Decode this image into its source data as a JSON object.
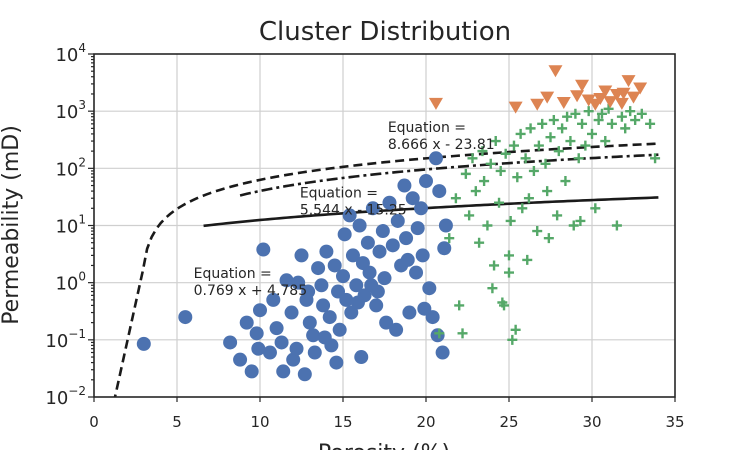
{
  "chart_data": {
    "type": "scatter",
    "title": "Cluster Distribution",
    "xlabel": "Porosity (%)",
    "ylabel": "Permeability (mD)",
    "xlim": [
      0,
      35
    ],
    "ylim_log10": [
      -2,
      4
    ],
    "yscale": "log",
    "grid": true,
    "x_ticks": [
      0,
      5,
      10,
      15,
      20,
      25,
      30,
      35
    ],
    "y_ticks": [
      {
        "base": "10",
        "exp": "−2"
      },
      {
        "base": "10",
        "exp": "−1"
      },
      {
        "base": "10",
        "exp": "0"
      },
      {
        "base": "10",
        "exp": "1"
      },
      {
        "base": "10",
        "exp": "2"
      },
      {
        "base": "10",
        "exp": "3"
      },
      {
        "base": "10",
        "exp": "4"
      }
    ],
    "colors": {
      "cluster_blue": "#4c72b0",
      "cluster_green": "#55a868",
      "cluster_orange": "#dd8452",
      "fit_line": "#1a1a1a"
    },
    "series": [
      {
        "marker": "circle",
        "color": "#4c72b0",
        "points": [
          [
            3.0,
            0.085
          ],
          [
            5.5,
            0.25
          ],
          [
            8.2,
            0.09
          ],
          [
            8.8,
            0.045
          ],
          [
            9.2,
            0.2
          ],
          [
            9.5,
            0.028
          ],
          [
            9.8,
            0.13
          ],
          [
            10.0,
            0.33
          ],
          [
            10.2,
            3.8
          ],
          [
            10.6,
            0.06
          ],
          [
            10.8,
            0.5
          ],
          [
            11.0,
            0.16
          ],
          [
            11.3,
            0.09
          ],
          [
            11.6,
            1.1
          ],
          [
            11.9,
            0.3
          ],
          [
            12.0,
            0.045
          ],
          [
            12.2,
            0.07
          ],
          [
            12.3,
            1.0
          ],
          [
            12.5,
            3.0
          ],
          [
            12.8,
            0.5
          ],
          [
            13.0,
            0.2
          ],
          [
            13.2,
            0.12
          ],
          [
            13.3,
            0.06
          ],
          [
            13.5,
            1.8
          ],
          [
            13.7,
            0.9
          ],
          [
            13.8,
            0.4
          ],
          [
            14.0,
            3.5
          ],
          [
            14.2,
            0.25
          ],
          [
            14.3,
            0.08
          ],
          [
            14.5,
            2.0
          ],
          [
            14.7,
            0.7
          ],
          [
            14.8,
            0.15
          ],
          [
            15.0,
            1.3
          ],
          [
            15.1,
            7.0
          ],
          [
            15.2,
            0.5
          ],
          [
            15.4,
            15.0
          ],
          [
            15.5,
            0.3
          ],
          [
            15.6,
            3.0
          ],
          [
            15.8,
            0.9
          ],
          [
            16.0,
            10.0
          ],
          [
            16.2,
            2.2
          ],
          [
            16.3,
            0.6
          ],
          [
            16.5,
            5.0
          ],
          [
            16.6,
            1.5
          ],
          [
            16.8,
            20.0
          ],
          [
            17.0,
            0.4
          ],
          [
            17.2,
            3.5
          ],
          [
            17.4,
            8.0
          ],
          [
            17.5,
            1.2
          ],
          [
            17.6,
            0.2
          ],
          [
            17.8,
            25.0
          ],
          [
            18.0,
            4.5
          ],
          [
            18.2,
            0.15
          ],
          [
            18.3,
            12.0
          ],
          [
            18.5,
            2.0
          ],
          [
            18.7,
            50.0
          ],
          [
            18.8,
            6.0
          ],
          [
            19.0,
            0.3
          ],
          [
            19.2,
            30.0
          ],
          [
            19.4,
            1.5
          ],
          [
            19.5,
            9.0
          ],
          [
            19.7,
            20.0
          ],
          [
            19.8,
            3.0
          ],
          [
            20.0,
            60.0
          ],
          [
            20.2,
            0.8
          ],
          [
            20.4,
            0.25
          ],
          [
            20.6,
            150.0
          ],
          [
            20.7,
            0.12
          ],
          [
            20.8,
            40.0
          ],
          [
            21.0,
            0.06
          ],
          [
            21.1,
            4.0
          ],
          [
            21.2,
            10.0
          ],
          [
            12.7,
            0.025
          ],
          [
            14.6,
            0.04
          ],
          [
            16.1,
            0.05
          ],
          [
            11.4,
            0.028
          ],
          [
            9.9,
            0.07
          ],
          [
            13.9,
            0.11
          ],
          [
            17.1,
            0.7
          ],
          [
            18.9,
            2.5
          ],
          [
            19.9,
            0.35
          ],
          [
            16.7,
            0.9
          ],
          [
            15.9,
            0.45
          ],
          [
            12.9,
            0.7
          ]
        ]
      },
      {
        "marker": "plus",
        "color": "#55a868",
        "points": [
          [
            20.8,
            0.13
          ],
          [
            21.4,
            6.0
          ],
          [
            21.8,
            30.0
          ],
          [
            22.0,
            0.4
          ],
          [
            22.2,
            0.13
          ],
          [
            22.4,
            80.0
          ],
          [
            22.6,
            15.0
          ],
          [
            22.8,
            150.0
          ],
          [
            23.0,
            40.0
          ],
          [
            23.2,
            5.0
          ],
          [
            23.4,
            200.0
          ],
          [
            23.5,
            60.0
          ],
          [
            23.7,
            10.0
          ],
          [
            23.9,
            120.0
          ],
          [
            24.0,
            0.8
          ],
          [
            24.1,
            2.0
          ],
          [
            24.2,
            300.0
          ],
          [
            24.4,
            25.0
          ],
          [
            24.5,
            90.0
          ],
          [
            24.7,
            0.4
          ],
          [
            24.8,
            180.0
          ],
          [
            25.0,
            3.0
          ],
          [
            25.1,
            12.0
          ],
          [
            25.2,
            0.1
          ],
          [
            25.3,
            250.0
          ],
          [
            25.5,
            70.0
          ],
          [
            25.7,
            400.0
          ],
          [
            25.8,
            20.0
          ],
          [
            26.0,
            150.0
          ],
          [
            26.2,
            30.0
          ],
          [
            26.3,
            500.0
          ],
          [
            26.5,
            90.0
          ],
          [
            26.7,
            8.0
          ],
          [
            26.8,
            250.0
          ],
          [
            27.0,
            600.0
          ],
          [
            27.2,
            120.0
          ],
          [
            27.3,
            40.0
          ],
          [
            27.5,
            350.0
          ],
          [
            27.7,
            700.0
          ],
          [
            27.9,
            15.0
          ],
          [
            28.0,
            200.0
          ],
          [
            28.2,
            500.0
          ],
          [
            28.4,
            60.0
          ],
          [
            28.5,
            800.0
          ],
          [
            28.7,
            300.0
          ],
          [
            28.9,
            10.0
          ],
          [
            29.0,
            900.0
          ],
          [
            29.2,
            150.0
          ],
          [
            29.4,
            600.0
          ],
          [
            29.6,
            250.0
          ],
          [
            29.8,
            1000.0
          ],
          [
            30.0,
            400.0
          ],
          [
            30.2,
            20.0
          ],
          [
            30.4,
            700.0
          ],
          [
            30.6,
            900.0
          ],
          [
            30.8,
            300.0
          ],
          [
            31.0,
            1100.0
          ],
          [
            31.2,
            600.0
          ],
          [
            31.5,
            10.0
          ],
          [
            31.8,
            800.0
          ],
          [
            32.0,
            500.0
          ],
          [
            32.3,
            1000.0
          ],
          [
            32.6,
            700.0
          ],
          [
            33.0,
            900.0
          ],
          [
            33.5,
            600.0
          ],
          [
            33.8,
            150.0
          ],
          [
            25.4,
            0.15
          ],
          [
            25.0,
            1.5
          ],
          [
            24.6,
            0.45
          ],
          [
            26.1,
            2.5
          ],
          [
            27.4,
            6.0
          ],
          [
            29.3,
            12.0
          ]
        ]
      },
      {
        "marker": "triangle-down",
        "color": "#dd8452",
        "points": [
          [
            20.6,
            1400.0
          ],
          [
            25.4,
            1200.0
          ],
          [
            26.7,
            1350.0
          ],
          [
            27.3,
            1800.0
          ],
          [
            27.8,
            5200.0
          ],
          [
            28.3,
            1450.0
          ],
          [
            29.1,
            1900.0
          ],
          [
            29.4,
            2900.0
          ],
          [
            29.8,
            1600.0
          ],
          [
            30.2,
            1350.0
          ],
          [
            30.5,
            1700.0
          ],
          [
            30.8,
            2300.0
          ],
          [
            31.1,
            1500.0
          ],
          [
            31.5,
            2000.0
          ],
          [
            31.8,
            1400.0
          ],
          [
            32.2,
            3500.0
          ],
          [
            32.5,
            1800.0
          ],
          [
            32.9,
            2600.0
          ],
          [
            31.9,
            2100.0
          ]
        ]
      }
    ],
    "fit_lines": [
      {
        "style": "solid",
        "slope": 0.769,
        "intercept": 4.785,
        "x_range": [
          6.6,
          34
        ]
      },
      {
        "style": "dashdot",
        "slope": 5.544,
        "intercept": -15.25,
        "x_range": [
          8.8,
          34
        ]
      },
      {
        "style": "dashed",
        "slope": 8.666,
        "intercept": -23.81,
        "x_range": [
          1.0,
          34
        ]
      }
    ],
    "annotations": [
      {
        "x": 6.0,
        "y": 1.2,
        "lines": [
          "Equation =",
          "0.769 x + 4.785"
        ]
      },
      {
        "x": 12.4,
        "y": 31.0,
        "lines": [
          "Equation =",
          "5.544 x - 15.25"
        ]
      },
      {
        "x": 17.7,
        "y": 430.0,
        "lines": [
          "Equation =",
          "8.666 x - 23.81"
        ]
      }
    ]
  }
}
